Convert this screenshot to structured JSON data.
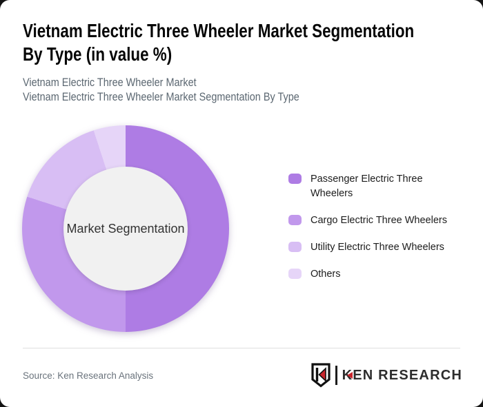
{
  "header": {
    "title_lines": [
      "Vietnam Electric Three Wheeler Market Segmentation",
      "By Type (in value %)"
    ],
    "title_full": "Vietnam Electric Three Wheeler Market Segmentation By Type (in value %)",
    "subtitle_line1": "Vietnam Electric Three Wheeler Market",
    "subtitle_line2": "Vietnam Electric Three Wheeler Market Segmentation By Type"
  },
  "chart_data": {
    "type": "pie",
    "donut": true,
    "title": "Vietnam Electric Three Wheeler Market Segmentation By Type (in value %)",
    "center_label": "Market Segmentation",
    "unit": "value %",
    "legend_position": "right",
    "start_angle_deg": 0,
    "direction": "clockwise",
    "segments": [
      {
        "label": "Passenger Electric Three Wheelers",
        "value": 50,
        "color": "#ae7ce4"
      },
      {
        "label": "Cargo Electric Three Wheelers",
        "value": 30,
        "color": "#c198ec"
      },
      {
        "label": "Utility Electric Three Wheelers",
        "value": 15,
        "color": "#d8bef4"
      },
      {
        "label": "Others",
        "value": 5,
        "color": "#e6d5f8"
      }
    ],
    "hole_color": "#f1f1f1"
  },
  "footer": {
    "source": "Source: Ken Research Analysis",
    "logo_text": "KEN RESEARCH"
  },
  "colors": {
    "accent_red": "#c9252c",
    "title_text": "#060606",
    "subtitle_text": "#5b6771",
    "divider": "#dedede"
  }
}
